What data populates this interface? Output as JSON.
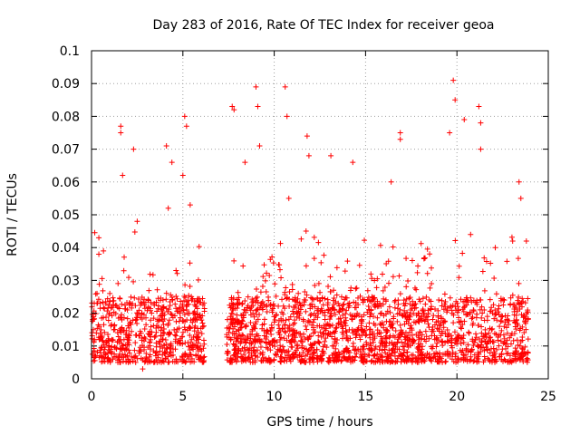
{
  "chart_data": {
    "type": "scatter",
    "title": "Day 283 of 2016, Rate Of TEC Index for receiver geoa",
    "xlabel": "GPS time / hours",
    "ylabel": "ROTI / TECUs",
    "xlim": [
      0,
      25
    ],
    "ylim": [
      0,
      0.1
    ],
    "xticks": [
      0,
      5,
      10,
      15,
      20,
      25
    ],
    "xtick_labels": [
      "0",
      "5",
      "10",
      "15",
      "20",
      "25"
    ],
    "yticks": [
      0,
      0.01,
      0.02,
      0.03,
      0.04,
      0.05,
      0.06,
      0.07,
      0.08,
      0.09,
      0.1
    ],
    "ytick_labels": [
      "0",
      "0.01",
      "0.02",
      "0.03",
      "0.04",
      "0.05",
      "0.06",
      "0.07",
      "0.08",
      "0.09",
      "0.1"
    ],
    "grid": true,
    "marker": "plus",
    "color": "#ff0000",
    "series": [
      {
        "name": "ROTI",
        "data_gap_hours": [
          6.2,
          7.4
        ],
        "time_range_hours": [
          0,
          23.9
        ],
        "baseline_range": [
          0.005,
          0.025
        ],
        "sample_points": [
          [
            0.1,
            0.015
          ],
          [
            0.3,
            0.026
          ],
          [
            0.4,
            0.043
          ],
          [
            0.4,
            0.038
          ],
          [
            1.0,
            0.026
          ],
          [
            1.6,
            0.077
          ],
          [
            1.6,
            0.075
          ],
          [
            1.7,
            0.062
          ],
          [
            2.3,
            0.07
          ],
          [
            2.5,
            0.048
          ],
          [
            2.8,
            0.003
          ],
          [
            4.1,
            0.071
          ],
          [
            4.2,
            0.052
          ],
          [
            4.4,
            0.066
          ],
          [
            5.0,
            0.062
          ],
          [
            5.1,
            0.08
          ],
          [
            5.2,
            0.077
          ],
          [
            5.4,
            0.053
          ],
          [
            7.7,
            0.083
          ],
          [
            7.8,
            0.082
          ],
          [
            8.4,
            0.066
          ],
          [
            9.0,
            0.089
          ],
          [
            9.1,
            0.083
          ],
          [
            9.2,
            0.071
          ],
          [
            10.6,
            0.089
          ],
          [
            10.7,
            0.08
          ],
          [
            10.8,
            0.055
          ],
          [
            11.8,
            0.074
          ],
          [
            11.9,
            0.068
          ],
          [
            13.1,
            0.068
          ],
          [
            14.3,
            0.066
          ],
          [
            16.4,
            0.06
          ],
          [
            16.9,
            0.075
          ],
          [
            16.9,
            0.073
          ],
          [
            19.6,
            0.075
          ],
          [
            19.8,
            0.091
          ],
          [
            19.9,
            0.085
          ],
          [
            20.4,
            0.079
          ],
          [
            21.2,
            0.083
          ],
          [
            21.3,
            0.078
          ],
          [
            21.3,
            0.07
          ],
          [
            22.1,
            0.04
          ],
          [
            23.4,
            0.06
          ],
          [
            23.5,
            0.055
          ],
          [
            23.8,
            0.042
          ]
        ]
      }
    ]
  }
}
